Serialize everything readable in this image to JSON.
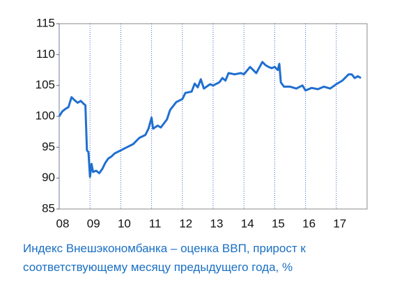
{
  "chart_data": {
    "type": "line",
    "caption": "Индекс Внешэкономбанка – оценка ВВП, прирост к соответствующему месяцу предыдущего года, %",
    "xlim": [
      2008,
      2018
    ],
    "xticks": [
      {
        "value": 2008,
        "label": "08"
      },
      {
        "value": 2009,
        "label": "09"
      },
      {
        "value": 2010,
        "label": "10"
      },
      {
        "value": 2011,
        "label": "11"
      },
      {
        "value": 2012,
        "label": "12"
      },
      {
        "value": 2013,
        "label": "13"
      },
      {
        "value": 2014,
        "label": "14"
      },
      {
        "value": 2015,
        "label": "15"
      },
      {
        "value": 2016,
        "label": "16"
      },
      {
        "value": 2017,
        "label": "17"
      }
    ],
    "ylim": [
      85,
      115
    ],
    "yticks": [
      85,
      90,
      95,
      100,
      105,
      110,
      115
    ],
    "grid": true,
    "color": "#1f6fd0",
    "x": [
      2008.0,
      2008.1,
      2008.2,
      2008.3,
      2008.4,
      2008.5,
      2008.6,
      2008.7,
      2008.8,
      2008.85,
      2008.9,
      2008.95,
      2009.0,
      2009.05,
      2009.1,
      2009.2,
      2009.3,
      2009.4,
      2009.5,
      2009.6,
      2009.7,
      2009.8,
      2010.0,
      2010.2,
      2010.4,
      2010.6,
      2010.8,
      2010.9,
      2011.0,
      2011.05,
      2011.2,
      2011.3,
      2011.5,
      2011.6,
      2011.8,
      2012.0,
      2012.1,
      2012.3,
      2012.4,
      2012.5,
      2012.6,
      2012.7,
      2012.9,
      2013.0,
      2013.2,
      2013.3,
      2013.4,
      2013.5,
      2013.7,
      2013.9,
      2014.0,
      2014.2,
      2014.3,
      2014.4,
      2014.6,
      2014.7,
      2014.8,
      2014.9,
      2015.0,
      2015.1,
      2015.15,
      2015.2,
      2015.3,
      2015.5,
      2015.7,
      2015.9,
      2016.0,
      2016.2,
      2016.4,
      2016.6,
      2016.8,
      2017.0,
      2017.2,
      2017.4,
      2017.5,
      2017.6,
      2017.7,
      2017.8
    ],
    "values": [
      100,
      100.8,
      101.2,
      101.5,
      103.1,
      102.6,
      102.2,
      102.5,
      102,
      101.8,
      94.5,
      94.2,
      90.2,
      92.3,
      91,
      91.2,
      90.8,
      91.5,
      92.5,
      93.2,
      93.5,
      94,
      94.5,
      95,
      95.5,
      96.5,
      97,
      98,
      99.8,
      98,
      98.5,
      98.2,
      99.5,
      101,
      102.3,
      102.8,
      103.8,
      104,
      105.3,
      104.7,
      106,
      104.5,
      105.2,
      105,
      105.5,
      106.2,
      105.8,
      107,
      106.8,
      107,
      106.8,
      108,
      107.5,
      107,
      108.8,
      108.3,
      108,
      107.8,
      108,
      107.5,
      108.5,
      105.5,
      104.8,
      104.8,
      104.5,
      105,
      104.2,
      104.6,
      104.4,
      104.8,
      104.5,
      105.2,
      105.8,
      106.8,
      106.8,
      106.2,
      106.5,
      106.2
    ]
  }
}
